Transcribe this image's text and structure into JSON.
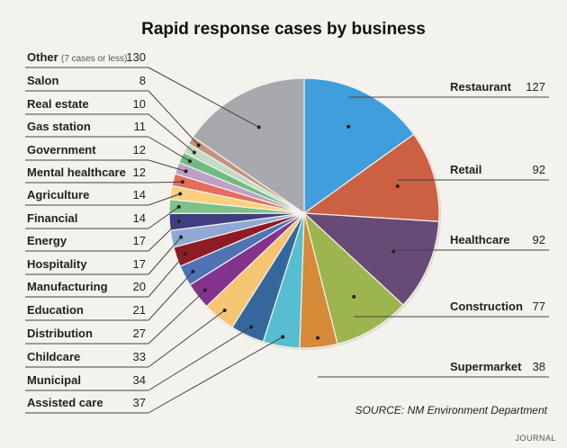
{
  "chart_data": {
    "type": "pie",
    "title": "Rapid response cases by business",
    "source": "SOURCE: NM Environment Department",
    "slices": [
      {
        "label": "Restaurant",
        "value": 127,
        "color": "#3f9edb",
        "side": "right"
      },
      {
        "label": "Retail",
        "value": 92,
        "color": "#cb6142",
        "side": "right"
      },
      {
        "label": "Healthcare",
        "value": 92,
        "color": "#684a77",
        "side": "right"
      },
      {
        "label": "Construction",
        "value": 77,
        "color": "#9db54f",
        "side": "right"
      },
      {
        "label": "Supermarket",
        "value": 38,
        "color": "#d58b38",
        "side": "right"
      },
      {
        "label": "Assisted care",
        "value": 37,
        "color": "#57bdd1",
        "side": "left"
      },
      {
        "label": "Municipal",
        "value": 34,
        "color": "#35679c",
        "side": "left"
      },
      {
        "label": "Childcare",
        "value": 33,
        "color": "#f5c572",
        "side": "left"
      },
      {
        "label": "Distribution",
        "value": 27,
        "color": "#84338d",
        "side": "left"
      },
      {
        "label": "Education",
        "value": 21,
        "color": "#4f73b5",
        "side": "left"
      },
      {
        "label": "Manufacturing",
        "value": 20,
        "color": "#8e1c25",
        "side": "left"
      },
      {
        "label": "Hospitality",
        "value": 17,
        "color": "#8fa8d4",
        "side": "left"
      },
      {
        "label": "Energy",
        "value": 17,
        "color": "#3e3e80",
        "side": "left"
      },
      {
        "label": "Financial",
        "value": 14,
        "color": "#7fbf8a",
        "side": "left"
      },
      {
        "label": "Agriculture",
        "value": 14,
        "color": "#f8d07e",
        "side": "left"
      },
      {
        "label": "Mental healthcare",
        "value": 12,
        "color": "#e36d5f",
        "side": "left"
      },
      {
        "label": "Government",
        "value": 12,
        "color": "#bea0c7",
        "side": "left"
      },
      {
        "label": "Gas station",
        "value": 11,
        "color": "#6ebd80",
        "side": "left"
      },
      {
        "label": "Real estate",
        "value": 10,
        "color": "#c0dcc4",
        "side": "left"
      },
      {
        "label": "Salon",
        "value": 8,
        "color": "#c4927c",
        "side": "left"
      },
      {
        "label": "Other",
        "note": "(7 cases or less)",
        "value": 130,
        "color": "#a8a9ac",
        "side": "left"
      }
    ]
  },
  "footer": {
    "brand": "JOURNAL"
  }
}
